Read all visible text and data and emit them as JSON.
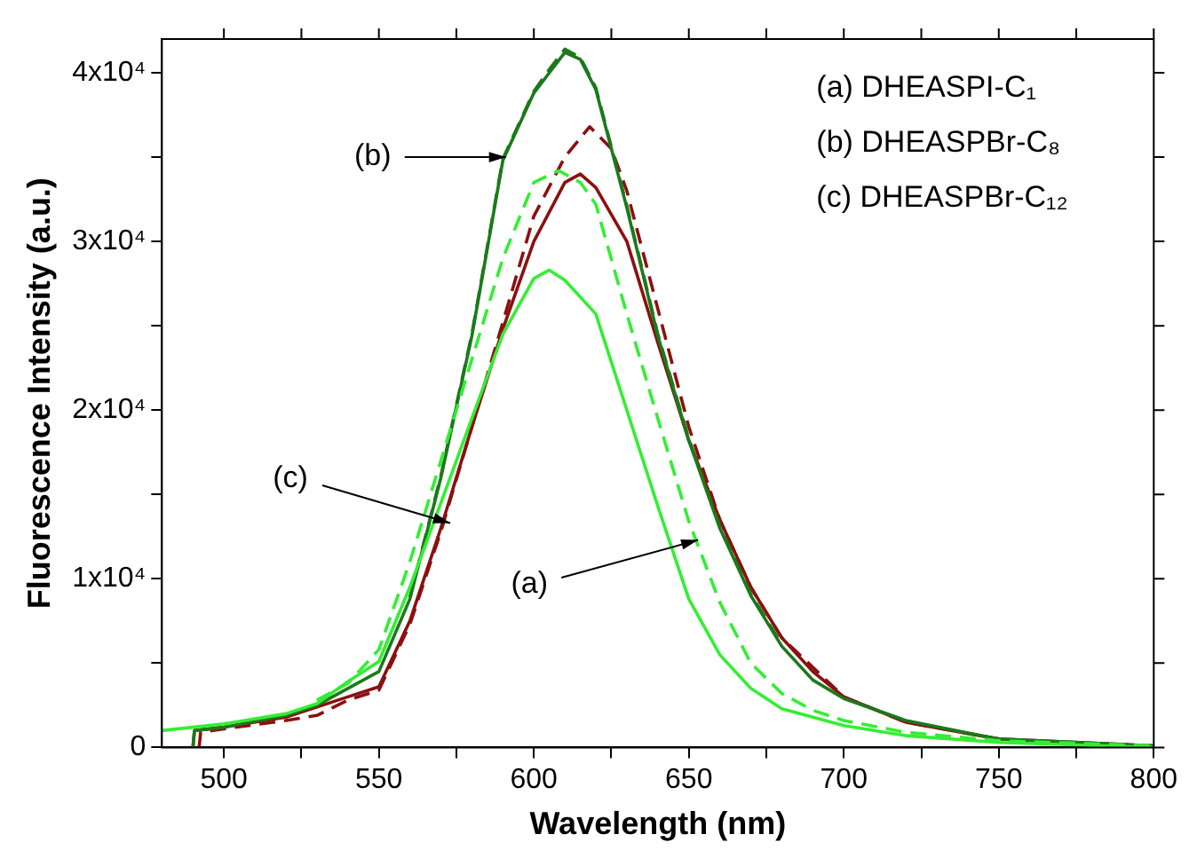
{
  "chart_data": {
    "type": "line",
    "xlabel": "Wavelength (nm)",
    "ylabel": "Fluorescence Intensity (a.u.)",
    "xlim": [
      480,
      800
    ],
    "ylim": [
      0,
      42000
    ],
    "xticks": [
      500,
      {
        "value": 525,
        "label": null
      },
      550,
      {
        "value": 575,
        "label": null
      },
      600,
      {
        "value": 625,
        "label": null
      },
      650,
      {
        "value": 675,
        "label": null
      },
      700,
      {
        "value": 725,
        "label": null
      },
      750,
      {
        "value": 775,
        "label": null
      },
      800
    ],
    "yticks": [
      0,
      {
        "value": 5000,
        "label": null
      },
      {
        "value": 10000,
        "label": "1x10⁴"
      },
      {
        "value": 15000,
        "label": null
      },
      {
        "value": 20000,
        "label": "2x10⁴"
      },
      {
        "value": 25000,
        "label": null
      },
      {
        "value": 30000,
        "label": "3x10⁴"
      },
      {
        "value": 35000,
        "label": null
      },
      {
        "value": 40000,
        "label": "4x10⁴"
      }
    ],
    "grid": false,
    "legend": false,
    "marker": "none",
    "series": [
      {
        "color": "#33ee33",
        "line_style": "solid",
        "x": [
          480,
          500,
          520,
          530,
          540,
          550,
          560,
          570,
          580,
          590,
          600,
          605,
          610,
          620,
          630,
          640,
          650,
          660,
          670,
          680,
          700,
          720,
          750,
          800
        ],
        "values": [
          1000,
          1400,
          2000,
          2600,
          3900,
          5100,
          9500,
          14500,
          19500,
          24500,
          27800,
          28300,
          27700,
          25700,
          20000,
          14300,
          8800,
          5500,
          3500,
          2300,
          1300,
          700,
          300,
          0
        ]
      },
      {
        "color": "#33ee33",
        "line_style": "dashed",
        "x": [
          530,
          540,
          550,
          560,
          570,
          580,
          590,
          600,
          608,
          615,
          620,
          630,
          640,
          650,
          660,
          670,
          680,
          690,
          700,
          720,
          750,
          800
        ],
        "values": [
          2800,
          3800,
          5800,
          11000,
          17000,
          23000,
          29000,
          33500,
          34200,
          33500,
          32200,
          25700,
          19500,
          13400,
          8600,
          5000,
          3200,
          2200,
          1600,
          900,
          400,
          100
        ]
      },
      {
        "color": "#1a7a1a",
        "line_style": "solid",
        "x": [
          490,
          490.5,
          500,
          520,
          530,
          540,
          550,
          560,
          570,
          580,
          590,
          600,
          605,
          610,
          615,
          620,
          630,
          640,
          650,
          660,
          670,
          680,
          690,
          700,
          720,
          750,
          800
        ],
        "values": [
          0,
          1000,
          1200,
          1900,
          2500,
          3500,
          4500,
          8800,
          16000,
          24400,
          34800,
          38800,
          40000,
          41200,
          40800,
          39000,
          32000,
          24400,
          18200,
          13000,
          9000,
          6000,
          4000,
          2900,
          1600,
          500,
          100
        ]
      },
      {
        "color": "#1a7a1a",
        "line_style": "dashed",
        "x": [
          560,
          570,
          580,
          590,
          600,
          605,
          610,
          615,
          620,
          630,
          640,
          650,
          660,
          670,
          680
        ],
        "values": [
          8900,
          16100,
          24500,
          34900,
          38900,
          40200,
          41400,
          40900,
          39100,
          32100,
          24500,
          18300,
          13100,
          9100,
          6100
        ]
      },
      {
        "color": "#8b1010",
        "line_style": "solid",
        "x": [
          490,
          490.5,
          500,
          520,
          540,
          550,
          560,
          570,
          580,
          590,
          600,
          610,
          615,
          620,
          630,
          640,
          650,
          660,
          670,
          680,
          690,
          700,
          720,
          750,
          800
        ],
        "values": [
          0,
          1000,
          1200,
          1800,
          3000,
          3600,
          7500,
          13000,
          19000,
          24800,
          30000,
          33500,
          34000,
          33200,
          30000,
          24000,
          18200,
          13500,
          9500,
          6500,
          4500,
          3000,
          1500,
          500,
          100
        ]
      },
      {
        "color": "#8b1010",
        "line_style": "dashed",
        "x": [
          492,
          492.5,
          500,
          520,
          530,
          540,
          550,
          560,
          570,
          580,
          590,
          600,
          610,
          618,
          625,
          630,
          640,
          650,
          660,
          670,
          680,
          700,
          720,
          750
        ],
        "values": [
          0,
          900,
          1100,
          1600,
          1900,
          2800,
          3400,
          7300,
          12800,
          19000,
          25200,
          31500,
          35000,
          36800,
          35500,
          33000,
          26000,
          19000,
          13500,
          9500,
          6500,
          3000,
          1500,
          500
        ]
      }
    ],
    "annotations": [
      "(a) DHEASPI-C₁",
      "(b) DHEASPBr-C₈",
      "(c) DHEASPBr-C₁₂",
      {
        "text": "(b)",
        "x": 591,
        "y": 35000
      },
      {
        "text": "(c)",
        "x": 573,
        "y": 13300
      },
      {
        "text": "(a)",
        "x": 653,
        "y": 12300
      }
    ]
  }
}
